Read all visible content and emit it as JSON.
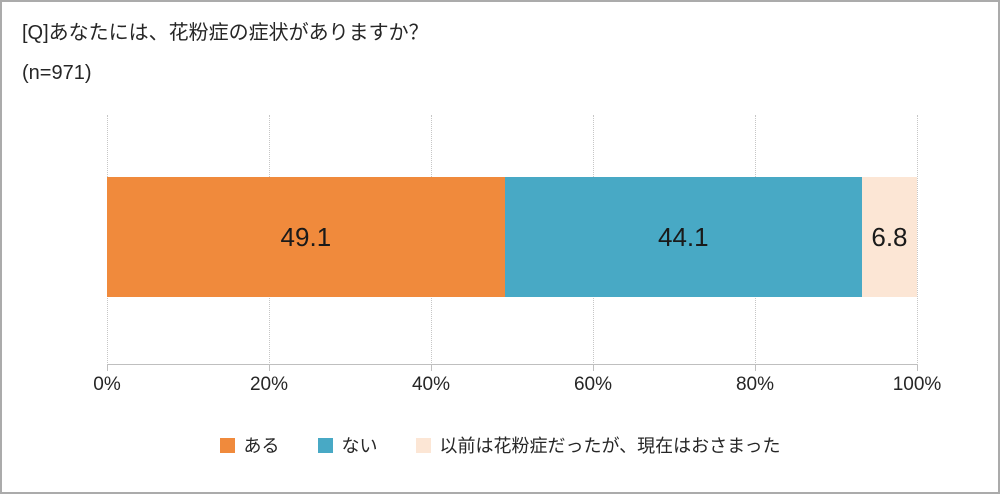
{
  "title": "[Q]あなたには、花粉症の症状がありますか？",
  "sample_size": "(n=971)",
  "chart_data": {
    "type": "bar",
    "subtype": "horizontal-stacked-100-percent",
    "title": "[Q]あなたには、花粉症の症状がありますか？",
    "n_label": "(n=971)",
    "series": [
      {
        "name": "ある",
        "value": 49.1,
        "label": "49.1",
        "color": "#F08A3C"
      },
      {
        "name": "ない",
        "value": 44.1,
        "label": "44.1",
        "color": "#48A9C5"
      },
      {
        "name": "以前は花粉症だったが、現在はおさまった",
        "value": 6.8,
        "label": "6.8",
        "color": "#FCE6D5"
      }
    ],
    "x_ticks": [
      "0%",
      "20%",
      "40%",
      "60%",
      "80%",
      "100%"
    ],
    "xlim": [
      0,
      100
    ],
    "grid": "vertical-dotted",
    "legend_position": "bottom"
  },
  "colors": {
    "accent_orange": "#F08A3C",
    "accent_teal": "#48A9C5",
    "accent_peach": "#FCE6D5",
    "axis_line": "#BFBFBF",
    "gridline": "#C6C6C6",
    "text": "#262626",
    "frame_border": "#ABABAB"
  }
}
